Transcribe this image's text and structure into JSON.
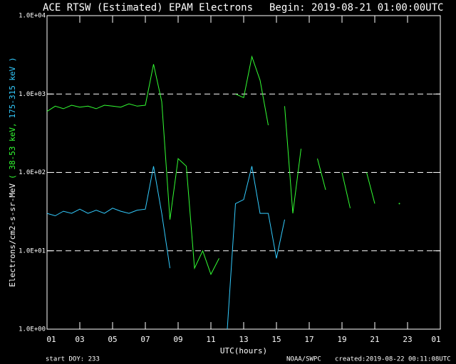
{
  "chart_data": {
    "type": "line",
    "title": "ACE RTSW (Estimated) EPAM Electrons",
    "subtitle": "Begin: 2019-08-21 01:00:00UTC",
    "ylabel": "Electrons/cm2-s-sr-MeV",
    "xlabel": "UTC(hours)",
    "footer_left": "start DOY:  233",
    "footer_center": "NOAA/SWPC",
    "footer_right": "created:2019-08-22 00:11:08UTC",
    "yscale": "log",
    "grid": true,
    "ylim": [
      1,
      10000
    ],
    "yticks": [
      {
        "value": 1,
        "label": "1.0E+00"
      },
      {
        "value": 10,
        "label": "1.0E+01"
      },
      {
        "value": 100,
        "label": "1.0E+02"
      },
      {
        "value": 1000,
        "label": "1.0E+03"
      },
      {
        "value": 10000,
        "label": "1.0E+04"
      }
    ],
    "xlim": [
      0,
      24
    ],
    "xticks": [
      {
        "value": 0,
        "label": "01"
      },
      {
        "value": 2,
        "label": "03"
      },
      {
        "value": 4,
        "label": "05"
      },
      {
        "value": 6,
        "label": "07"
      },
      {
        "value": 8,
        "label": "09"
      },
      {
        "value": 10,
        "label": "11"
      },
      {
        "value": 12,
        "label": "13"
      },
      {
        "value": 14,
        "label": "15"
      },
      {
        "value": 16,
        "label": "17"
      },
      {
        "value": 18,
        "label": "19"
      },
      {
        "value": 20,
        "label": "21"
      },
      {
        "value": 22,
        "label": "23"
      },
      {
        "value": 24,
        "label": "01"
      }
    ],
    "x": [
      0,
      0.5,
      1,
      1.5,
      2,
      2.5,
      3,
      3.5,
      4,
      4.5,
      5,
      5.5,
      6,
      6.5,
      7,
      7.5,
      8,
      8.5,
      9,
      9.5,
      10,
      10.5,
      11,
      11.5,
      12,
      12.5,
      13,
      13.5,
      14,
      14.5,
      15,
      15.5,
      16,
      16.5,
      17,
      17.5,
      18,
      18.5,
      19,
      19.5,
      20,
      20.5,
      21,
      21.5,
      22,
      22.5,
      23,
      23.5,
      24
    ],
    "series": [
      {
        "name": "( 38-53 keV,",
        "color": "#33ff33",
        "values": [
          600,
          700,
          650,
          720,
          680,
          700,
          650,
          720,
          700,
          680,
          750,
          700,
          720,
          2400,
          800,
          25,
          150,
          120,
          6,
          10,
          5,
          8,
          null,
          1000,
          900,
          3000,
          1500,
          400,
          null,
          700,
          30,
          200,
          null,
          150,
          60,
          null,
          100,
          35,
          null,
          100,
          40,
          null,
          null,
          40,
          null,
          null,
          null,
          null,
          null
        ]
      },
      {
        "name": "175-315 keV )",
        "color": "#33ccff",
        "values": [
          30,
          28,
          32,
          30,
          34,
          30,
          33,
          30,
          35,
          32,
          30,
          33,
          34,
          120,
          30,
          6,
          null,
          null,
          null,
          null,
          null,
          null,
          1,
          40,
          45,
          120,
          30,
          30,
          8,
          25,
          null,
          null,
          null,
          null,
          null,
          null,
          null,
          null,
          null,
          null,
          null,
          null,
          null,
          null,
          null,
          null,
          null,
          null,
          null
        ]
      }
    ]
  }
}
